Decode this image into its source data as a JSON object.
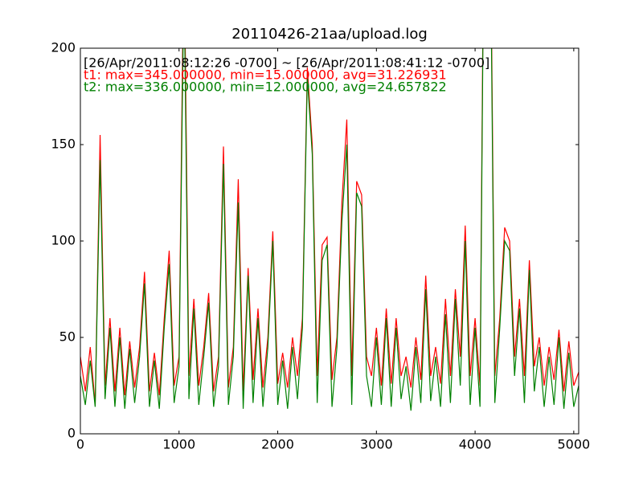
{
  "chart_data": {
    "type": "line",
    "title": "20110426-21aa/upload.log",
    "annotations": [
      {
        "text": "[26/Apr/2011:08:12:26 -0700] ~ [26/Apr/2011:08:41:12 -0700]",
        "color": "#000000"
      },
      {
        "text": "t1: max=345.000000, min=15.000000, avg=31.226931",
        "color": "#ff0000"
      },
      {
        "text": "t2: max=336.000000, min=12.000000, avg=24.657822",
        "color": "#008000"
      }
    ],
    "xlim": [
      0,
      5050
    ],
    "ylim": [
      0,
      200
    ],
    "xticks": [
      0,
      1000,
      2000,
      3000,
      4000,
      5000
    ],
    "yticks": [
      0,
      50,
      100,
      150,
      200
    ],
    "x": [
      0,
      50,
      100,
      150,
      200,
      250,
      300,
      350,
      400,
      450,
      500,
      550,
      600,
      650,
      700,
      750,
      800,
      850,
      900,
      950,
      1000,
      1050,
      1100,
      1150,
      1200,
      1250,
      1300,
      1350,
      1400,
      1450,
      1500,
      1550,
      1600,
      1650,
      1700,
      1750,
      1800,
      1850,
      1900,
      1950,
      2000,
      2050,
      2100,
      2150,
      2200,
      2250,
      2300,
      2350,
      2400,
      2450,
      2500,
      2550,
      2600,
      2650,
      2700,
      2750,
      2800,
      2850,
      2900,
      2950,
      3000,
      3050,
      3100,
      3150,
      3200,
      3250,
      3300,
      3350,
      3400,
      3450,
      3500,
      3550,
      3600,
      3650,
      3700,
      3750,
      3800,
      3850,
      3900,
      3950,
      4000,
      4050,
      4100,
      4150,
      4200,
      4250,
      4300,
      4350,
      4400,
      4450,
      4500,
      4550,
      4600,
      4650,
      4700,
      4750,
      4800,
      4850,
      4900,
      4950,
      5000,
      5050
    ],
    "series": [
      {
        "name": "t1",
        "color": "#ff0000",
        "values": [
          40,
          22,
          45,
          15,
          155,
          25,
          60,
          22,
          55,
          20,
          48,
          24,
          45,
          84,
          22,
          42,
          20,
          60,
          95,
          25,
          40,
          260,
          30,
          70,
          25,
          45,
          73,
          22,
          40,
          149,
          24,
          45,
          132,
          22,
          86,
          28,
          65,
          24,
          50,
          105,
          26,
          42,
          24,
          50,
          30,
          60,
          190,
          150,
          30,
          98,
          102,
          28,
          50,
          120,
          163,
          30,
          131,
          124,
          40,
          30,
          55,
          25,
          65,
          26,
          60,
          30,
          40,
          24,
          50,
          28,
          82,
          30,
          45,
          26,
          70,
          30,
          75,
          40,
          108,
          30,
          60,
          25,
          345,
          300,
          30,
          60,
          107,
          100,
          40,
          70,
          30,
          90,
          35,
          50,
          25,
          45,
          28,
          54,
          22,
          48,
          25,
          32
        ]
      },
      {
        "name": "t2",
        "color": "#008000",
        "values": [
          30,
          15,
          38,
          14,
          142,
          18,
          55,
          14,
          50,
          13,
          44,
          16,
          40,
          78,
          14,
          38,
          13,
          55,
          88,
          16,
          35,
          240,
          18,
          65,
          15,
          40,
          68,
          14,
          35,
          140,
          15,
          40,
          120,
          13,
          82,
          16,
          60,
          14,
          45,
          100,
          15,
          38,
          13,
          45,
          18,
          55,
          185,
          145,
          16,
          90,
          98,
          14,
          45,
          110,
          150,
          15,
          125,
          118,
          30,
          14,
          50,
          15,
          60,
          14,
          55,
          18,
          35,
          12,
          45,
          16,
          75,
          17,
          40,
          14,
          62,
          16,
          70,
          25,
          100,
          15,
          55,
          14,
          336,
          290,
          16,
          55,
          100,
          95,
          30,
          65,
          16,
          85,
          22,
          45,
          14,
          40,
          15,
          50,
          13,
          42,
          14,
          25
        ]
      }
    ]
  }
}
